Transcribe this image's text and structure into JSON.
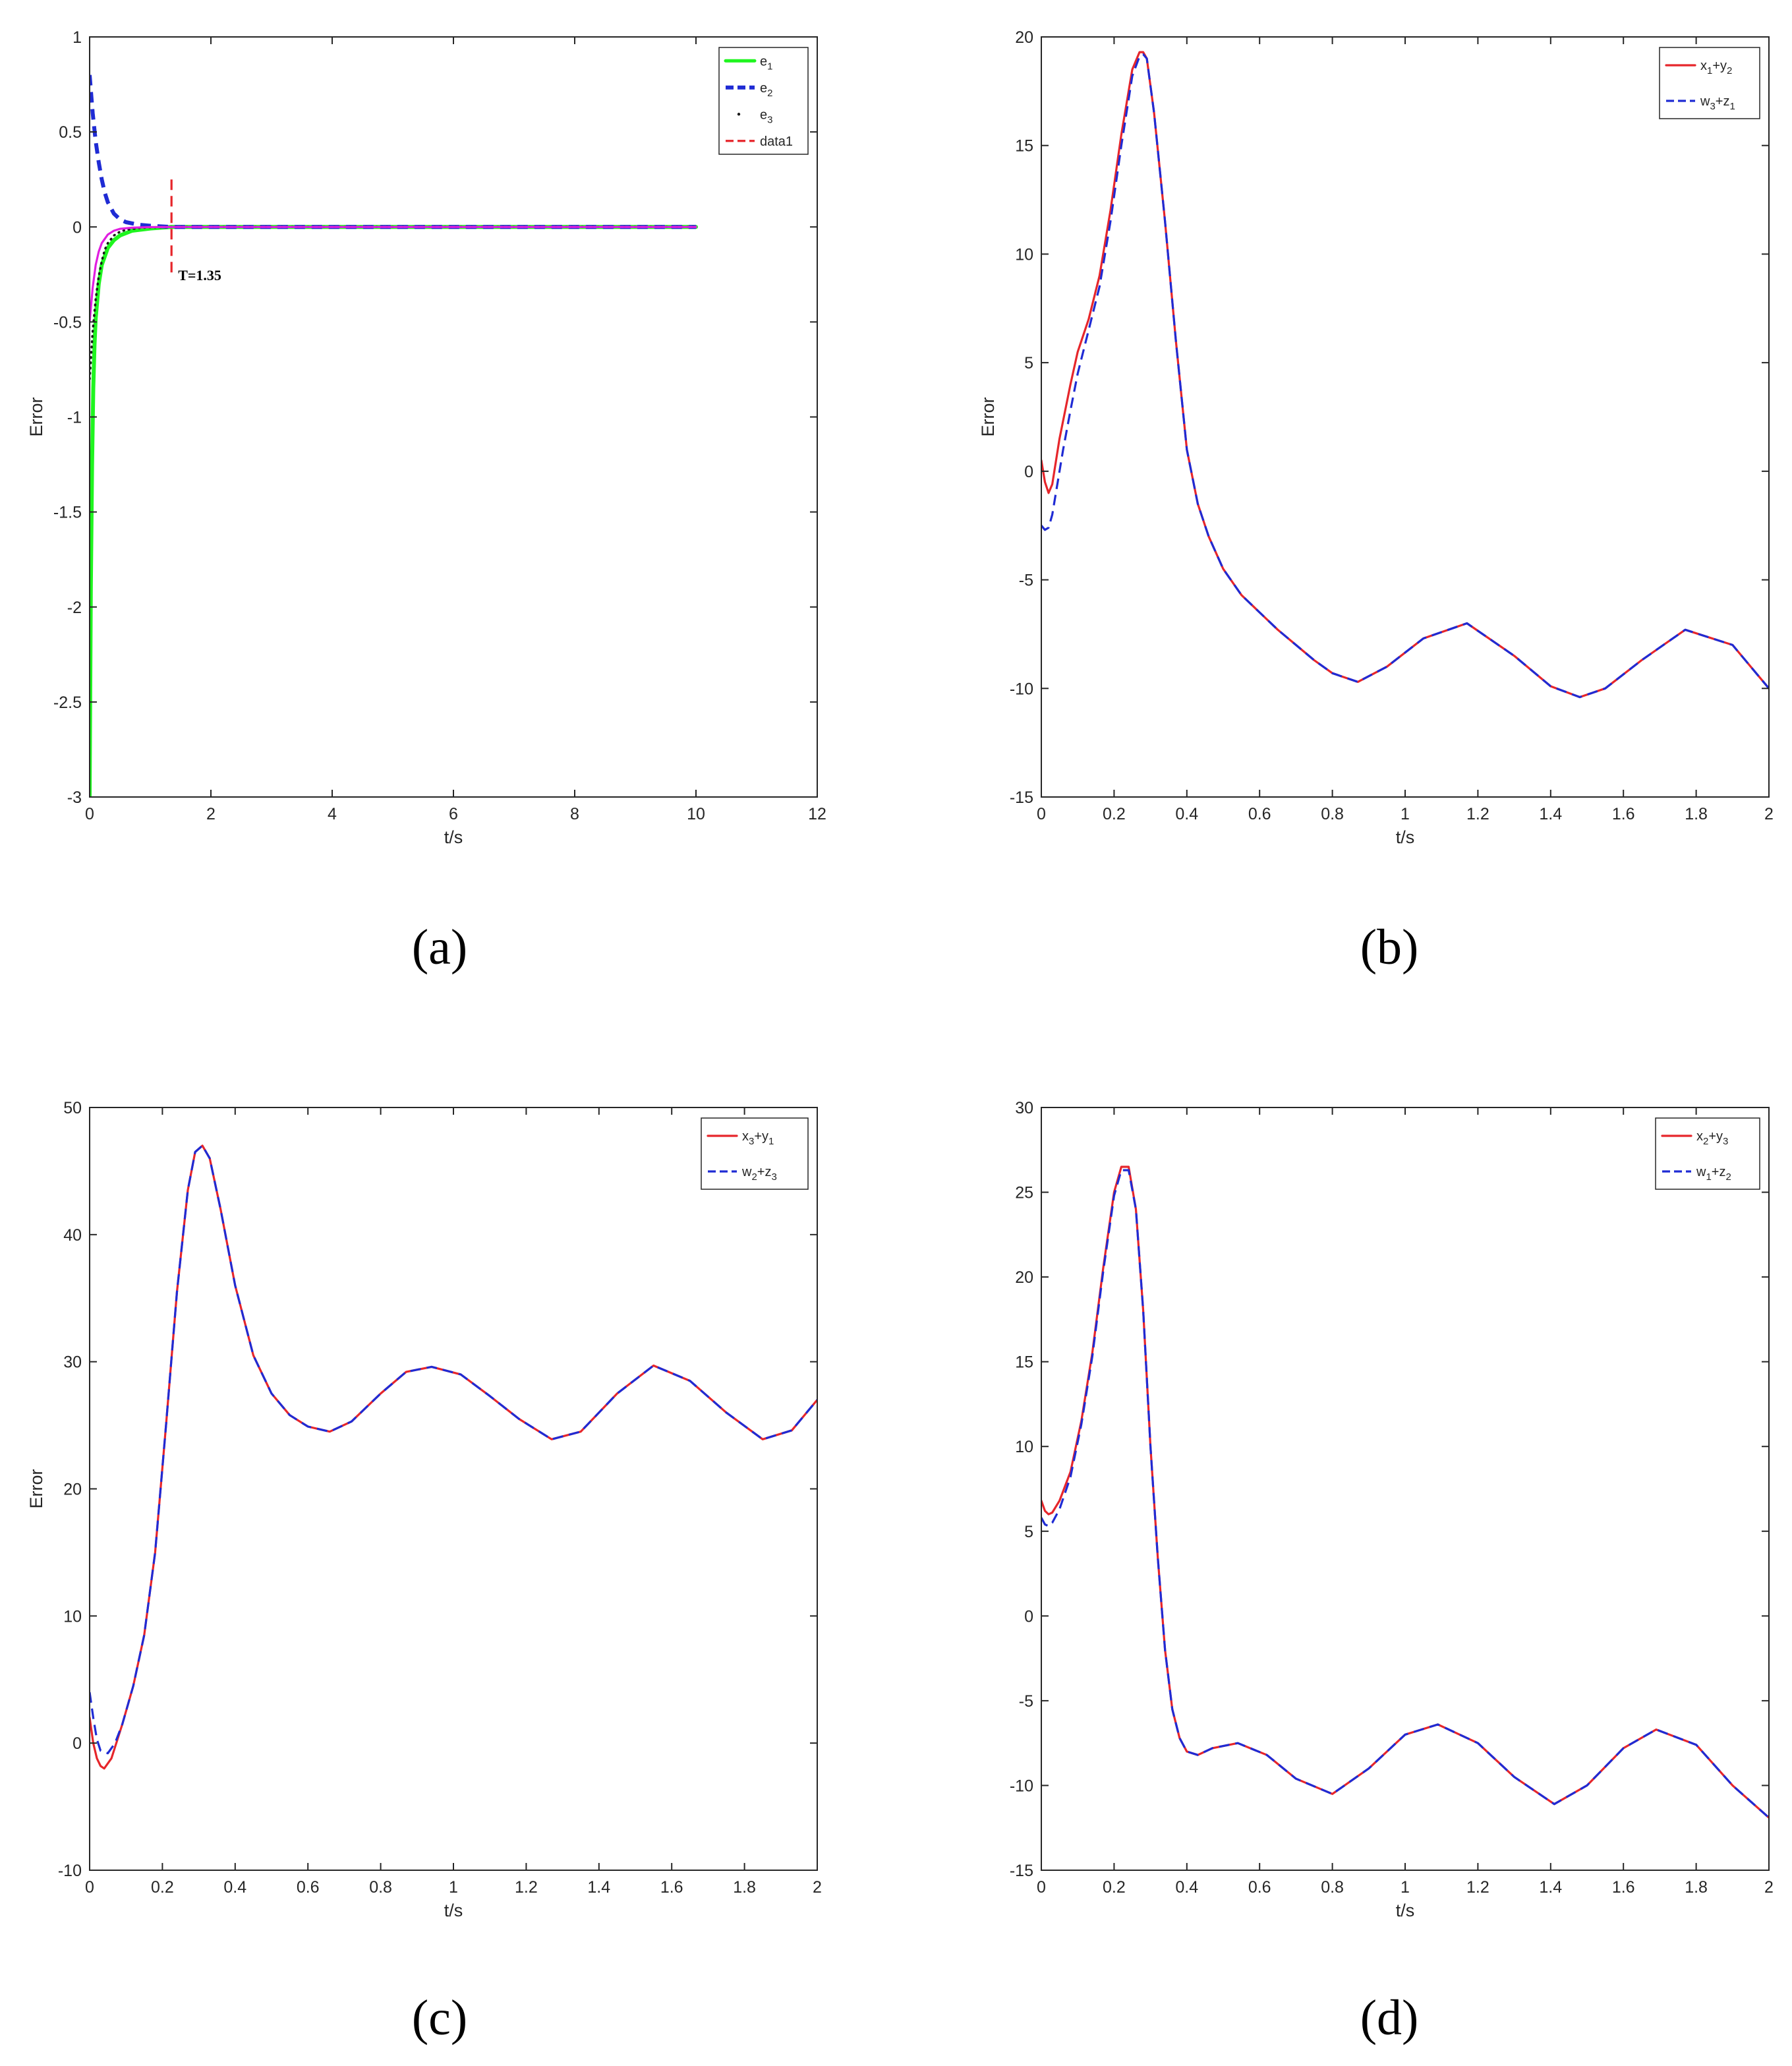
{
  "captions": [
    "(a)",
    "(b)",
    "(c)",
    "(d)"
  ],
  "colors": {
    "red": "#e6262b",
    "blue": "#1f2bd4",
    "green": "#1ff51f",
    "magenta": "#e01ee0",
    "black": "#1a1a1a",
    "axes": "#262626"
  },
  "chart_data": [
    {
      "type": "line",
      "xlabel": "t/s",
      "ylabel": "Error",
      "xlim": [
        0,
        12
      ],
      "ylim": [
        -3,
        1
      ],
      "xticks": [
        0,
        2,
        4,
        6,
        8,
        10,
        12
      ],
      "yticks": [
        -3,
        -2.5,
        -2,
        -1.5,
        -1,
        -0.5,
        0,
        0.5,
        1
      ],
      "ytick_labels": [
        "-3",
        "-2.5",
        "-2",
        "-1.5",
        "-1",
        "-0.5",
        "0",
        "0.5",
        "1"
      ],
      "grid": false,
      "legend_position": "top-right",
      "annotation": {
        "text": "T=1.35",
        "x": 1.35
      },
      "series": [
        {
          "name": "e1",
          "style": "solid-thick",
          "color": "green",
          "x": [
            0,
            0.02,
            0.04,
            0.06,
            0.08,
            0.1,
            0.15,
            0.2,
            0.3,
            0.4,
            0.5,
            0.7,
            1.0,
            1.35,
            2,
            4,
            6,
            8,
            10
          ],
          "y": [
            -3,
            -1.9,
            -1.25,
            -0.85,
            -0.62,
            -0.48,
            -0.3,
            -0.2,
            -0.11,
            -0.07,
            -0.045,
            -0.02,
            -0.008,
            0,
            0,
            0,
            0,
            0,
            0
          ]
        },
        {
          "name": "e2",
          "style": "dashed-thick",
          "color": "blue",
          "x": [
            0,
            0.05,
            0.1,
            0.15,
            0.2,
            0.25,
            0.3,
            0.4,
            0.5,
            0.6,
            0.8,
            1.0,
            1.35,
            2,
            4,
            6,
            8,
            10
          ],
          "y": [
            0.8,
            0.6,
            0.45,
            0.34,
            0.25,
            0.18,
            0.13,
            0.07,
            0.04,
            0.025,
            0.012,
            0.006,
            0,
            0,
            0,
            0,
            0,
            0
          ]
        },
        {
          "name": "e3",
          "style": "dotted",
          "color": "black",
          "x": [
            0,
            0.05,
            0.1,
            0.15,
            0.2,
            0.25,
            0.3,
            0.4,
            0.5,
            0.6,
            0.8,
            1.0,
            1.35,
            2,
            4,
            6,
            8,
            10
          ],
          "y": [
            -0.8,
            -0.55,
            -0.38,
            -0.26,
            -0.18,
            -0.12,
            -0.085,
            -0.045,
            -0.025,
            -0.015,
            -0.006,
            -0.002,
            0,
            0,
            0,
            0,
            0,
            0
          ]
        },
        {
          "name": "e3",
          "style": "solid",
          "color": "magenta",
          "legend": false,
          "x": [
            0,
            0.05,
            0.1,
            0.15,
            0.2,
            0.3,
            0.4,
            0.5,
            0.7,
            1.0,
            1.35,
            2,
            4,
            6,
            8,
            10
          ],
          "y": [
            -0.5,
            -0.32,
            -0.2,
            -0.13,
            -0.085,
            -0.04,
            -0.02,
            -0.01,
            -0.004,
            -0.001,
            0,
            0,
            0,
            0,
            0,
            0
          ]
        },
        {
          "name": "data1",
          "style": "dashed",
          "color": "red",
          "x": [
            1.35,
            1.35
          ],
          "y": [
            0.25,
            -0.25
          ]
        }
      ],
      "legend_entries": [
        {
          "base": "e",
          "sub": "1",
          "sup": ""
        },
        {
          "base": "e",
          "sub": "2",
          "sup": ""
        },
        {
          "base": "e",
          "sub": "3",
          "sup": ""
        },
        {
          "base": "data1",
          "sub": "",
          "sup": ""
        }
      ]
    },
    {
      "type": "line",
      "xlabel": "t/s",
      "ylabel": "Error",
      "xlim": [
        0,
        2
      ],
      "ylim": [
        -15,
        20
      ],
      "xticks": [
        0,
        0.2,
        0.4,
        0.6,
        0.8,
        1,
        1.2,
        1.4,
        1.6,
        1.8,
        2
      ],
      "yticks": [
        -15,
        -10,
        -5,
        0,
        5,
        10,
        15,
        20
      ],
      "ytick_labels": [
        "-15",
        "-10",
        "-5",
        "0",
        "5",
        "10",
        "15",
        "20"
      ],
      "grid": false,
      "legend_position": "top-right",
      "series": [
        {
          "name": "x1+y2",
          "style": "solid",
          "color": "red",
          "x": [
            0,
            0.01,
            0.02,
            0.03,
            0.05,
            0.08,
            0.1,
            0.13,
            0.16,
            0.19,
            0.22,
            0.25,
            0.27,
            0.28,
            0.29,
            0.31,
            0.34,
            0.37,
            0.4,
            0.43,
            0.46,
            0.5,
            0.55,
            0.6,
            0.65,
            0.7,
            0.75,
            0.8,
            0.87,
            0.95,
            1.05,
            1.17,
            1.3,
            1.4,
            1.48,
            1.55,
            1.65,
            1.77,
            1.9,
            2.0
          ],
          "y": [
            0.5,
            -0.5,
            -1.0,
            -0.6,
            1.5,
            4.0,
            5.5,
            7.0,
            9.0,
            12.0,
            15.5,
            18.5,
            19.3,
            19.3,
            19.0,
            16.5,
            11.5,
            6.0,
            1.0,
            -1.5,
            -3.0,
            -4.5,
            -5.7,
            -6.5,
            -7.3,
            -8.0,
            -8.7,
            -9.3,
            -9.7,
            -9.0,
            -7.7,
            -7.0,
            -8.5,
            -9.9,
            -10.4,
            -10.0,
            -8.7,
            -7.3,
            -8.0,
            -10.0
          ]
        },
        {
          "name": "w3+z1",
          "style": "dashed",
          "color": "blue",
          "x": [
            0,
            0.01,
            0.02,
            0.03,
            0.04,
            0.06,
            0.08,
            0.1,
            0.13,
            0.16,
            0.19,
            0.22,
            0.25,
            0.27,
            0.28,
            0.29,
            0.31,
            0.34,
            0.37,
            0.4,
            0.43,
            0.46,
            0.5,
            0.55,
            0.6,
            0.65,
            0.7,
            0.75,
            0.8,
            0.87,
            0.95,
            1.05,
            1.17,
            1.3,
            1.4,
            1.48,
            1.55,
            1.65,
            1.77,
            1.9,
            2.0
          ],
          "y": [
            -2.5,
            -2.7,
            -2.6,
            -2.0,
            -1.0,
            1.0,
            2.8,
            4.5,
            6.5,
            8.5,
            11.5,
            15.0,
            18.2,
            19.1,
            19.2,
            19.0,
            16.5,
            11.5,
            6.0,
            1.0,
            -1.5,
            -3.0,
            -4.5,
            -5.7,
            -6.5,
            -7.3,
            -8.0,
            -8.7,
            -9.3,
            -9.7,
            -9.0,
            -7.7,
            -7.0,
            -8.5,
            -9.9,
            -10.4,
            -10.0,
            -8.7,
            -7.3,
            -8.0,
            -10.0
          ]
        }
      ],
      "legend_entries": [
        {
          "base": "x",
          "sub": "1",
          "mid": "+y",
          "sub2": "2"
        },
        {
          "base": "w",
          "sub": "3",
          "mid": "+z",
          "sub2": "1"
        }
      ]
    },
    {
      "type": "line",
      "xlabel": "t/s",
      "ylabel": "Error",
      "xlim": [
        0,
        2
      ],
      "ylim": [
        -10,
        50
      ],
      "xticks": [
        0,
        0.2,
        0.4,
        0.6,
        0.8,
        1,
        1.2,
        1.4,
        1.6,
        1.8,
        2
      ],
      "yticks": [
        -10,
        0,
        10,
        20,
        30,
        40,
        50
      ],
      "ytick_labels": [
        "-10",
        "0",
        "10",
        "20",
        "30",
        "40",
        "50"
      ],
      "grid": false,
      "legend_position": "top-right",
      "series": [
        {
          "name": "x3+y1",
          "style": "solid",
          "color": "red",
          "x": [
            0,
            0.01,
            0.02,
            0.03,
            0.04,
            0.06,
            0.09,
            0.12,
            0.15,
            0.18,
            0.21,
            0.24,
            0.27,
            0.29,
            0.31,
            0.33,
            0.36,
            0.4,
            0.45,
            0.5,
            0.55,
            0.6,
            0.66,
            0.72,
            0.8,
            0.87,
            0.94,
            1.02,
            1.1,
            1.18,
            1.27,
            1.35,
            1.45,
            1.55,
            1.65,
            1.75,
            1.85,
            1.93,
            2.0
          ],
          "y": [
            2.0,
            0.0,
            -1.2,
            -1.8,
            -2.0,
            -1.2,
            1.5,
            4.5,
            8.5,
            15.0,
            25.0,
            35.5,
            43.5,
            46.5,
            47.0,
            46.0,
            42.0,
            36.0,
            30.5,
            27.5,
            25.8,
            24.9,
            24.5,
            25.3,
            27.5,
            29.2,
            29.6,
            29.0,
            27.3,
            25.5,
            23.9,
            24.5,
            27.5,
            29.7,
            28.5,
            26.0,
            23.9,
            24.6,
            27.0
          ]
        },
        {
          "name": "w2+z3",
          "style": "dashed",
          "color": "blue",
          "x": [
            0,
            0.01,
            0.02,
            0.03,
            0.05,
            0.07,
            0.09,
            0.12,
            0.15,
            0.18,
            0.21,
            0.24,
            0.27,
            0.29,
            0.31,
            0.33,
            0.36,
            0.4,
            0.45,
            0.5,
            0.55,
            0.6,
            0.66,
            0.72,
            0.8,
            0.87,
            0.94,
            1.02,
            1.1,
            1.18,
            1.27,
            1.35,
            1.45,
            1.55,
            1.65,
            1.75,
            1.85,
            1.93,
            2.0
          ],
          "y": [
            4.0,
            2.0,
            0.3,
            -0.6,
            -0.8,
            0.0,
            1.5,
            4.5,
            8.5,
            15.0,
            25.0,
            35.5,
            43.5,
            46.5,
            47.0,
            46.0,
            42.0,
            36.0,
            30.5,
            27.5,
            25.8,
            24.9,
            24.5,
            25.3,
            27.5,
            29.2,
            29.6,
            29.0,
            27.3,
            25.5,
            23.9,
            24.5,
            27.5,
            29.7,
            28.5,
            26.0,
            23.9,
            24.6,
            27.0
          ]
        }
      ],
      "legend_entries": [
        {
          "base": "x",
          "sub": "3",
          "mid": "+y",
          "sub2": "1"
        },
        {
          "base": "w",
          "sub": "2",
          "mid": "+z",
          "sub2": "3"
        }
      ]
    },
    {
      "type": "line",
      "xlabel": "t/s",
      "ylabel": "",
      "xlim": [
        0,
        2
      ],
      "ylim": [
        -15,
        30
      ],
      "xticks": [
        0,
        0.2,
        0.4,
        0.6,
        0.8,
        1,
        1.2,
        1.4,
        1.6,
        1.8,
        2
      ],
      "yticks": [
        -15,
        -10,
        -5,
        0,
        5,
        10,
        15,
        20,
        25,
        30
      ],
      "ytick_labels": [
        "-15",
        "-10",
        "-5",
        "0",
        "5",
        "10",
        "15",
        "20",
        "25",
        "30"
      ],
      "grid": false,
      "legend_position": "top-right",
      "series": [
        {
          "name": "x2+y3",
          "style": "solid",
          "color": "red",
          "x": [
            0,
            0.01,
            0.02,
            0.03,
            0.05,
            0.08,
            0.11,
            0.14,
            0.17,
            0.2,
            0.22,
            0.24,
            0.26,
            0.28,
            0.3,
            0.32,
            0.34,
            0.36,
            0.38,
            0.4,
            0.43,
            0.47,
            0.54,
            0.62,
            0.7,
            0.8,
            0.9,
            1.0,
            1.09,
            1.2,
            1.3,
            1.41,
            1.5,
            1.6,
            1.69,
            1.8,
            1.9,
            2.0
          ],
          "y": [
            6.8,
            6.2,
            6.0,
            6.1,
            6.8,
            8.5,
            11.5,
            15.5,
            20.5,
            25.0,
            26.5,
            26.5,
            24.0,
            18.0,
            10.0,
            3.5,
            -2.0,
            -5.5,
            -7.2,
            -8.0,
            -8.2,
            -7.8,
            -7.5,
            -8.2,
            -9.6,
            -10.5,
            -9.0,
            -7.0,
            -6.4,
            -7.5,
            -9.5,
            -11.1,
            -10.0,
            -7.8,
            -6.7,
            -7.6,
            -10.0,
            -11.9
          ]
        },
        {
          "name": "w1+z2",
          "style": "dashed",
          "color": "blue",
          "x": [
            0,
            0.01,
            0.02,
            0.03,
            0.05,
            0.08,
            0.11,
            0.14,
            0.17,
            0.2,
            0.22,
            0.24,
            0.26,
            0.28,
            0.3,
            0.32,
            0.34,
            0.36,
            0.38,
            0.4,
            0.43,
            0.47,
            0.54,
            0.62,
            0.7,
            0.8,
            0.9,
            1.0,
            1.09,
            1.2,
            1.3,
            1.41,
            1.5,
            1.6,
            1.69,
            1.8,
            1.9,
            2.0
          ],
          "y": [
            5.8,
            5.4,
            5.3,
            5.5,
            6.3,
            8.2,
            11.3,
            15.3,
            20.3,
            24.8,
            26.3,
            26.3,
            24.0,
            18.0,
            10.0,
            3.5,
            -2.0,
            -5.5,
            -7.2,
            -8.0,
            -8.2,
            -7.8,
            -7.5,
            -8.2,
            -9.6,
            -10.5,
            -9.0,
            -7.0,
            -6.4,
            -7.5,
            -9.5,
            -11.1,
            -10.0,
            -7.8,
            -6.7,
            -7.6,
            -10.0,
            -11.9
          ]
        }
      ],
      "legend_entries": [
        {
          "base": "x",
          "sub": "2",
          "mid": "+y",
          "sub2": "3"
        },
        {
          "base": "w",
          "sub": "1",
          "mid": "+z",
          "sub2": "2"
        }
      ]
    }
  ]
}
